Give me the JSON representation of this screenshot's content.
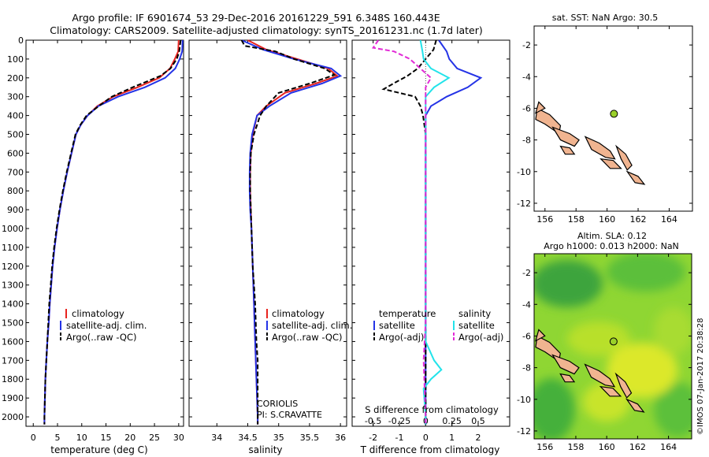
{
  "header": {
    "line1": "Argo profile: IF 6901674_53 29-Dec-2016 20161229_591 6.348S 160.443E",
    "line2": "Climatology: CARS2009. Satellite-adjusted climatology: synTS_20161231.nc (1.7d later)"
  },
  "colors": {
    "clim": "#e8231e",
    "sat": "#2433e6",
    "argo": "#000000",
    "sdiff_sat": "#22e3ea",
    "sdiff_argo": "#e22ad6",
    "land": "#f0b490",
    "marker": "#9ad02a"
  },
  "chart_data": [
    {
      "type": "line",
      "panel": "temperature",
      "xlabel": "temperature (deg C)",
      "ylabel": "",
      "xlim": [
        -1.5,
        31
      ],
      "ylim": [
        2050,
        0
      ],
      "xticks": [
        0,
        5,
        10,
        15,
        20,
        25,
        30
      ],
      "yticks": [
        0,
        100,
        200,
        300,
        400,
        500,
        600,
        700,
        800,
        900,
        1000,
        1100,
        1200,
        1300,
        1400,
        1500,
        1600,
        1700,
        1800,
        1900,
        2000
      ],
      "legend": [
        "climatology",
        "satellite-adj. clim.",
        "Argo(..raw -QC)"
      ],
      "series": [
        {
          "name": "climatology",
          "color": "#e8231e",
          "points": [
            [
              30,
              0
            ],
            [
              29.9,
              60
            ],
            [
              29.2,
              100
            ],
            [
              28.2,
              150
            ],
            [
              26.0,
              200
            ],
            [
              21.5,
              250
            ],
            [
              16.5,
              300
            ],
            [
              13.2,
              350
            ],
            [
              11.2,
              400
            ],
            [
              9.8,
              450
            ],
            [
              8.8,
              500
            ],
            [
              7.9,
              600
            ],
            [
              7.0,
              700
            ],
            [
              6.2,
              800
            ],
            [
              5.5,
              900
            ],
            [
              4.9,
              1000
            ],
            [
              4.4,
              1100
            ],
            [
              4.0,
              1200
            ],
            [
              3.7,
              1300
            ],
            [
              3.4,
              1400
            ],
            [
              3.2,
              1500
            ],
            [
              2.9,
              1600
            ],
            [
              2.7,
              1700
            ],
            [
              2.5,
              1800
            ],
            [
              2.4,
              1900
            ],
            [
              2.3,
              2000
            ],
            [
              2.3,
              2040
            ]
          ]
        },
        {
          "name": "satellite-adj. clim.",
          "color": "#2433e6",
          "points": [
            [
              30.8,
              0
            ],
            [
              30.7,
              60
            ],
            [
              30.2,
              100
            ],
            [
              29.3,
              150
            ],
            [
              27.2,
              200
            ],
            [
              23.0,
              250
            ],
            [
              17.5,
              300
            ],
            [
              13.4,
              350
            ],
            [
              11.2,
              400
            ],
            [
              9.8,
              450
            ],
            [
              8.8,
              500
            ],
            [
              7.9,
              600
            ],
            [
              7.0,
              700
            ],
            [
              6.2,
              800
            ],
            [
              5.5,
              900
            ],
            [
              4.9,
              1000
            ],
            [
              4.4,
              1100
            ],
            [
              4.0,
              1200
            ],
            [
              3.7,
              1300
            ],
            [
              3.4,
              1400
            ],
            [
              3.2,
              1500
            ],
            [
              2.9,
              1600
            ],
            [
              2.7,
              1700
            ],
            [
              2.5,
              1800
            ],
            [
              2.4,
              1900
            ],
            [
              2.3,
              2000
            ],
            [
              2.3,
              2040
            ]
          ]
        },
        {
          "name": "Argo(..raw -QC)",
          "color": "#000000",
          "dash": true,
          "points": [
            [
              30.4,
              0
            ],
            [
              30.1,
              60
            ],
            [
              29.6,
              100
            ],
            [
              28.3,
              150
            ],
            [
              26.2,
              190
            ],
            [
              20.5,
              250
            ],
            [
              16.2,
              300
            ],
            [
              13.5,
              350
            ],
            [
              11.0,
              400
            ],
            [
              9.7,
              450
            ],
            [
              8.7,
              500
            ],
            [
              7.8,
              600
            ],
            [
              6.9,
              700
            ],
            [
              6.1,
              800
            ],
            [
              5.4,
              900
            ],
            [
              4.8,
              1000
            ],
            [
              4.3,
              1100
            ],
            [
              3.9,
              1200
            ],
            [
              3.6,
              1300
            ],
            [
              3.3,
              1400
            ],
            [
              3.1,
              1500
            ],
            [
              2.9,
              1600
            ],
            [
              2.7,
              1700
            ],
            [
              2.5,
              1800
            ],
            [
              2.4,
              1900
            ],
            [
              2.3,
              2000
            ],
            [
              2.3,
              2040
            ]
          ]
        }
      ]
    },
    {
      "type": "line",
      "panel": "salinity",
      "xlabel": "salinity",
      "ylabel": "",
      "xlim": [
        33.55,
        36.1
      ],
      "ylim": [
        2050,
        0
      ],
      "xticks": [
        34,
        34.5,
        35,
        35.5,
        36
      ],
      "legend": [
        "climatology",
        "satellite-adj. clim.",
        "Argo(..raw -QC)"
      ],
      "annotation": [
        "CORIOLIS",
        "PI: S.CRAVATTE"
      ],
      "series": [
        {
          "name": "climatology",
          "color": "#e8231e",
          "points": [
            [
              34.5,
              0
            ],
            [
              34.8,
              50
            ],
            [
              35.3,
              100
            ],
            [
              35.8,
              150
            ],
            [
              35.95,
              190
            ],
            [
              35.6,
              230
            ],
            [
              35.1,
              280
            ],
            [
              34.8,
              350
            ],
            [
              34.65,
              400
            ],
            [
              34.58,
              500
            ],
            [
              34.55,
              600
            ],
            [
              34.54,
              700
            ],
            [
              34.54,
              800
            ],
            [
              34.55,
              900
            ],
            [
              34.56,
              1000
            ],
            [
              34.57,
              1100
            ],
            [
              34.58,
              1200
            ],
            [
              34.59,
              1300
            ],
            [
              34.6,
              1400
            ],
            [
              34.61,
              1500
            ],
            [
              34.62,
              1600
            ],
            [
              34.63,
              1700
            ],
            [
              34.64,
              1800
            ],
            [
              34.65,
              1900
            ],
            [
              34.66,
              2000
            ],
            [
              34.66,
              2040
            ]
          ]
        },
        {
          "name": "satellite-adj. clim.",
          "color": "#2433e6",
          "points": [
            [
              34.4,
              0
            ],
            [
              34.75,
              50
            ],
            [
              35.25,
              100
            ],
            [
              35.85,
              150
            ],
            [
              36.0,
              190
            ],
            [
              35.7,
              230
            ],
            [
              35.2,
              280
            ],
            [
              34.85,
              350
            ],
            [
              34.65,
              400
            ],
            [
              34.57,
              500
            ],
            [
              34.54,
              600
            ],
            [
              34.53,
              700
            ],
            [
              34.53,
              800
            ],
            [
              34.54,
              900
            ],
            [
              34.56,
              1000
            ],
            [
              34.57,
              1100
            ],
            [
              34.58,
              1200
            ],
            [
              34.59,
              1300
            ],
            [
              34.6,
              1400
            ],
            [
              34.61,
              1500
            ],
            [
              34.62,
              1600
            ],
            [
              34.63,
              1700
            ],
            [
              34.64,
              1800
            ],
            [
              34.65,
              1900
            ],
            [
              34.66,
              2000
            ],
            [
              34.66,
              2040
            ]
          ]
        },
        {
          "name": "Argo(..raw -QC)",
          "color": "#000000",
          "dash": true,
          "points": [
            [
              34.4,
              0
            ],
            [
              34.45,
              30
            ],
            [
              34.95,
              60
            ],
            [
              35.25,
              100
            ],
            [
              35.75,
              150
            ],
            [
              35.9,
              185
            ],
            [
              35.5,
              230
            ],
            [
              35.0,
              280
            ],
            [
              34.8,
              350
            ],
            [
              34.7,
              400
            ],
            [
              34.6,
              500
            ],
            [
              34.55,
              600
            ],
            [
              34.54,
              700
            ],
            [
              34.54,
              800
            ],
            [
              34.55,
              900
            ],
            [
              34.56,
              1000
            ],
            [
              34.57,
              1100
            ],
            [
              34.58,
              1200
            ],
            [
              34.6,
              1300
            ],
            [
              34.62,
              1400
            ],
            [
              34.63,
              1500
            ],
            [
              34.64,
              1600
            ],
            [
              34.66,
              1700
            ],
            [
              34.66,
              1800
            ],
            [
              34.66,
              1900
            ],
            [
              34.66,
              2000
            ],
            [
              34.66,
              2040
            ]
          ]
        }
      ]
    },
    {
      "type": "line",
      "panel": "difference",
      "xlabel": "T difference from climatology",
      "xlabel_top": "S difference from climatology",
      "ylabel": "",
      "xlim": [
        -2.8,
        3.2
      ],
      "ylim": [
        2050,
        0
      ],
      "xticks": [
        -2,
        -1,
        0,
        1,
        2
      ],
      "xticks_top": [
        -0.5,
        -0.25,
        0,
        0.25,
        0.5
      ],
      "legend_groups": [
        {
          "title": "temperature",
          "items": [
            "satellite",
            "Argo(-adj)"
          ]
        },
        {
          "title": "salinity",
          "items": [
            "satellite",
            "Argo(-adj)"
          ]
        }
      ],
      "series": [
        {
          "name": "satellite",
          "group": "temperature",
          "color": "#2433e6",
          "points": [
            [
              0.5,
              0
            ],
            [
              0.8,
              60
            ],
            [
              0.9,
              100
            ],
            [
              1.2,
              150
            ],
            [
              2.1,
              200
            ],
            [
              1.6,
              250
            ],
            [
              0.8,
              300
            ],
            [
              0.2,
              350
            ],
            [
              0.0,
              400
            ],
            [
              0.0,
              500
            ],
            [
              0.0,
              700
            ],
            [
              0.0,
              1000
            ],
            [
              0.0,
              1500
            ],
            [
              0.0,
              2000
            ],
            [
              0.0,
              2040
            ]
          ]
        },
        {
          "name": "Argo(-adj)",
          "group": "temperature",
          "color": "#000000",
          "dash": true,
          "points": [
            [
              0.4,
              0
            ],
            [
              0.3,
              50
            ],
            [
              0.0,
              100
            ],
            [
              -0.3,
              150
            ],
            [
              -0.7,
              190
            ],
            [
              -1.1,
              220
            ],
            [
              -1.6,
              260
            ],
            [
              -0.4,
              300
            ],
            [
              -0.2,
              350
            ],
            [
              -0.1,
              400
            ],
            [
              0.0,
              500
            ],
            [
              0.0,
              700
            ],
            [
              0.0,
              1000
            ],
            [
              0.0,
              1500
            ],
            [
              0.0,
              2000
            ],
            [
              0.0,
              2040
            ]
          ]
        },
        {
          "name": "satellite",
          "group": "salinity",
          "color": "#22e3ea",
          "points": [
            [
              -0.05,
              0
            ],
            [
              -0.03,
              60
            ],
            [
              -0.02,
              100
            ],
            [
              0.05,
              150
            ],
            [
              0.22,
              200
            ],
            [
              0.08,
              250
            ],
            [
              0.0,
              300
            ],
            [
              0.0,
              500
            ],
            [
              0.0,
              1000
            ],
            [
              0.0,
              1500
            ],
            [
              0.0,
              1600
            ],
            [
              0.08,
              1700
            ],
            [
              0.15,
              1750
            ],
            [
              0.05,
              1800
            ],
            [
              -0.02,
              1850
            ],
            [
              0.0,
              2000
            ],
            [
              0.0,
              2040
            ]
          ]
        },
        {
          "name": "Argo(-adj)",
          "group": "salinity",
          "color": "#e22ad6",
          "dash": true,
          "points": [
            [
              -0.45,
              0
            ],
            [
              -0.5,
              40
            ],
            [
              -0.3,
              60
            ],
            [
              -0.15,
              100
            ],
            [
              -0.05,
              150
            ],
            [
              0.05,
              200
            ],
            [
              0.0,
              250
            ],
            [
              0.0,
              400
            ],
            [
              0.0,
              700
            ],
            [
              0.0,
              1000
            ],
            [
              0.0,
              1500
            ],
            [
              -0.02,
              1700
            ],
            [
              0.0,
              2000
            ],
            [
              0.0,
              2040
            ]
          ]
        }
      ]
    }
  ],
  "map_top": {
    "title": "sat. SST: NaN Argo: 30.5",
    "xticks": [
      156,
      158,
      160,
      162,
      164
    ],
    "yticks": [
      -2,
      -4,
      -6,
      -8,
      -10,
      -12
    ],
    "xlim": [
      155.3,
      165.5
    ],
    "ylim": [
      -12.5,
      -0.8
    ],
    "argo_position": [
      160.443,
      -6.348
    ]
  },
  "map_bottom": {
    "title1": "Altim. SLA: 0.12",
    "title2": "Argo h1000: 0.013 h2000: NaN",
    "xticks": [
      156,
      158,
      160,
      162,
      164
    ],
    "yticks": [
      -2,
      -4,
      -6,
      -8,
      -10,
      -12
    ],
    "xlim": [
      155.3,
      165.5
    ],
    "ylim": [
      -12.5,
      -0.8
    ],
    "argo_position": [
      160.443,
      -6.348
    ]
  },
  "credit": "©IMOS 07-Jan-2017 20:38:28"
}
